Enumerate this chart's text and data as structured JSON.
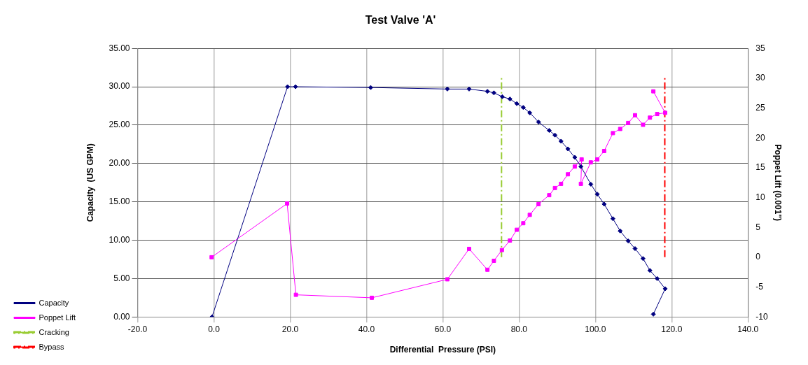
{
  "chart_data": {
    "type": "line",
    "title": "Test Valve 'A'",
    "xlabel": "Differential  Pressure (PSI)",
    "ylabel": "Capacity  (US GPM)",
    "y2label": "Poppet Lift (0.001\")",
    "xlim": [
      -20,
      140
    ],
    "xticks": [
      {
        "value": -20,
        "label": "-20.0"
      },
      {
        "value": 0,
        "label": "0.0"
      },
      {
        "value": 20,
        "label": "20.0"
      },
      {
        "value": 40,
        "label": "40.0"
      },
      {
        "value": 60,
        "label": "60.0"
      },
      {
        "value": 80,
        "label": "80.0"
      },
      {
        "value": 100,
        "label": "100.0"
      },
      {
        "value": 120,
        "label": "120.0"
      },
      {
        "value": 140,
        "label": "140.0"
      }
    ],
    "ylim": [
      0,
      35
    ],
    "yticks": [
      {
        "value": 0,
        "label": "0.00"
      },
      {
        "value": 5,
        "label": "5.00"
      },
      {
        "value": 10,
        "label": "10.00"
      },
      {
        "value": 15,
        "label": "15.00"
      },
      {
        "value": 20,
        "label": "20.00"
      },
      {
        "value": 25,
        "label": "25.00"
      },
      {
        "value": 30,
        "label": "30.00"
      },
      {
        "value": 35,
        "label": "35.00"
      }
    ],
    "y2lim": [
      -10,
      35
    ],
    "y2ticks": [
      -10,
      -5,
      0,
      5,
      10,
      15,
      20,
      25,
      30,
      35
    ],
    "grid": true,
    "legend": "bottom left",
    "series": [
      {
        "name": "Capacity",
        "color": "#000080",
        "marker": "diamond",
        "line_style": "solid",
        "x": [
          -0.5,
          19.3,
          21.4,
          41.1,
          61.2,
          66.9,
          71.7,
          73.4,
          75.6,
          77.6,
          79.4,
          81.1,
          82.8,
          85.1,
          87.9,
          89.4,
          91.0,
          92.8,
          94.6,
          96.2,
          98.8,
          100.5,
          102.3,
          104.6,
          106.5,
          108.6,
          110.4,
          112.5,
          114.3,
          116.2,
          118.3,
          115.2
        ],
        "values": [
          0,
          30.0,
          30.0,
          29.9,
          29.7,
          29.7,
          29.4,
          29.2,
          28.7,
          28.4,
          27.8,
          27.3,
          26.6,
          25.4,
          24.3,
          23.7,
          22.9,
          21.9,
          20.8,
          19.6,
          17.3,
          16.0,
          14.7,
          12.8,
          11.2,
          9.9,
          8.9,
          7.6,
          6.05,
          5.0,
          3.67,
          0.35
        ]
      },
      {
        "name": "Poppet Lift",
        "color": "#ff00ff",
        "marker": "square",
        "line_style": "solid",
        "axis": "y2",
        "x": [
          -0.6,
          19.2,
          21.5,
          41.4,
          61.2,
          66.9,
          71.7,
          73.4,
          75.5,
          77.6,
          79.4,
          81.1,
          82.8,
          85.1,
          87.9,
          89.4,
          91.0,
          92.8,
          94.6,
          96.4,
          96.2,
          98.8,
          100.5,
          102.3,
          104.6,
          106.5,
          108.6,
          110.4,
          112.5,
          114.3,
          116.2,
          118.3,
          115.2
        ],
        "values": [
          0,
          9.0,
          -6.3,
          -6.8,
          -3.7,
          1.4,
          -2.1,
          -0.6,
          1.2,
          2.8,
          4.6,
          5.7,
          7.1,
          8.9,
          10.4,
          11.6,
          12.3,
          13.9,
          15.2,
          16.4,
          12.3,
          15.9,
          16.4,
          17.8,
          20.8,
          21.5,
          22.5,
          23.8,
          22.2,
          23.4,
          24.0,
          24.2,
          27.8
        ]
      },
      {
        "name": "Cracking",
        "color": "#99cc33",
        "marker": "none",
        "line_style": "dashed",
        "axis": "y2",
        "x": [
          75.4,
          75.4
        ],
        "values": [
          0,
          30
        ]
      },
      {
        "name": "Bypass",
        "color": "#ff0000",
        "marker": "none",
        "line_style": "dashed",
        "axis": "y2",
        "x": [
          118.2,
          118.2
        ],
        "values": [
          0,
          30
        ]
      }
    ]
  }
}
